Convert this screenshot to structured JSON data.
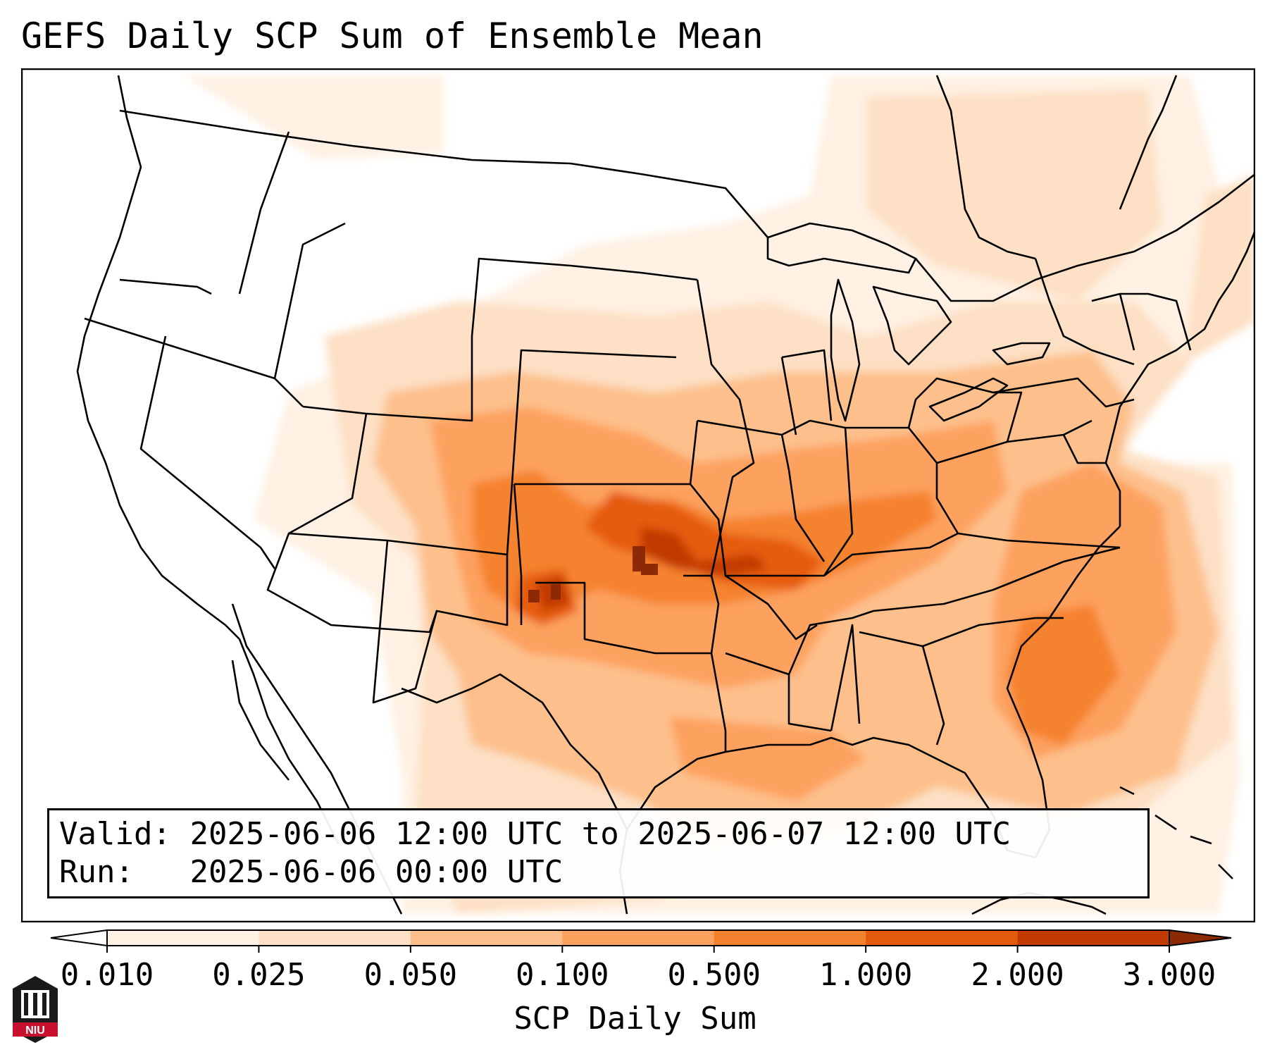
{
  "title": "GEFS Daily SCP Sum of Ensemble Mean",
  "info": {
    "valid_label": "Valid:",
    "valid_value": "2025-06-06 12:00 UTC to 2025-06-07 12:00 UTC",
    "run_label": "Run:",
    "run_value": "2025-06-06 00:00 UTC"
  },
  "colorbar": {
    "label": "SCP Daily Sum",
    "ticks": [
      "0.010",
      "0.025",
      "0.050",
      "0.100",
      "0.500",
      "1.000",
      "2.000",
      "3.000"
    ],
    "colors": [
      "#fff1e3",
      "#fde0c5",
      "#fdc08c",
      "#fda15e",
      "#f5822f",
      "#e55b0e",
      "#c13b02",
      "#8c2a04"
    ],
    "extend": "both"
  },
  "logo": {
    "text": "NIU",
    "icon": "university-logo-icon"
  },
  "map": {
    "region": "Contiguous United States",
    "max_area": "Oklahoma / Kansas"
  }
}
